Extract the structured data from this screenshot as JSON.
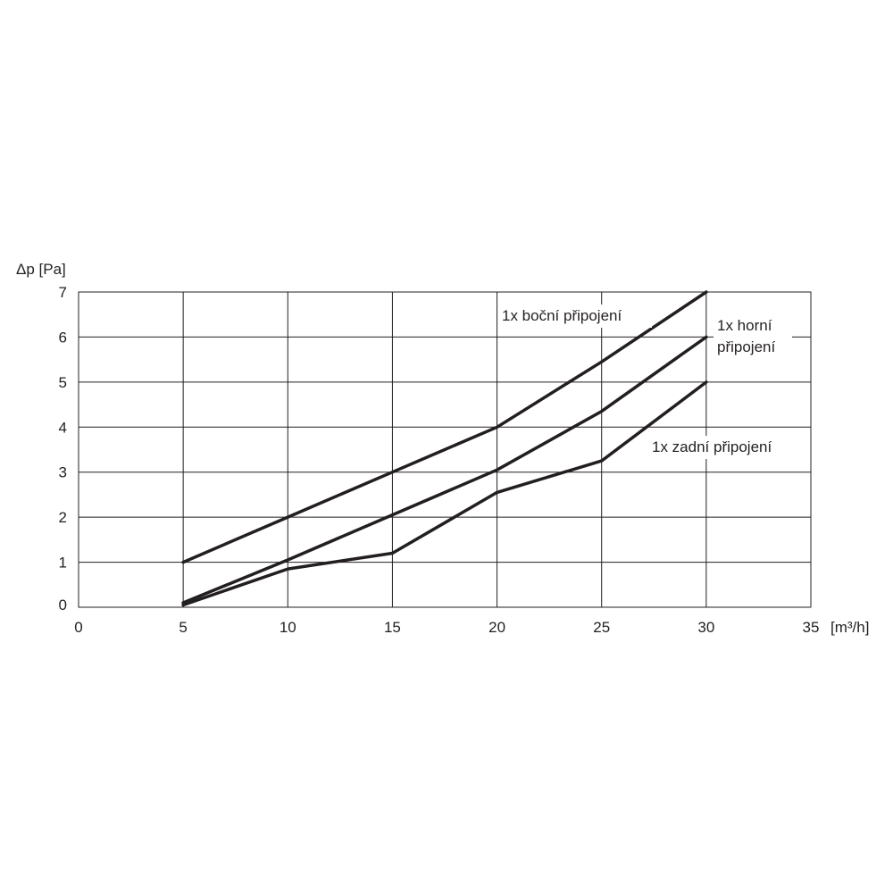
{
  "chart_data": {
    "type": "line",
    "ylabel": "Δp [Pa]",
    "xlabel": "[m³/h]",
    "xlim": [
      0,
      35
    ],
    "ylim": [
      0,
      7
    ],
    "xticks": [
      "0",
      "5",
      "10",
      "15",
      "20",
      "25",
      "30",
      "35"
    ],
    "yticks": [
      "0",
      "1",
      "2",
      "3",
      "4",
      "5",
      "6",
      "7"
    ],
    "grid": true,
    "series": [
      {
        "name": "1x boční připojení",
        "x": [
          5,
          10,
          15,
          20,
          25,
          30
        ],
        "y": [
          1.0,
          2.0,
          3.0,
          4.0,
          5.45,
          7.0
        ]
      },
      {
        "name": "1x horní připojení",
        "x": [
          5,
          10,
          15,
          20,
          25,
          30
        ],
        "y": [
          0.1,
          1.05,
          2.05,
          3.05,
          4.35,
          6.0
        ]
      },
      {
        "name": "1x zadní připojení",
        "x": [
          5,
          10,
          15,
          20,
          25,
          30
        ],
        "y": [
          0.05,
          0.85,
          1.2,
          2.55,
          3.25,
          5.0
        ]
      }
    ],
    "series_label_lines": [
      [
        "1x boční připojení"
      ],
      [
        "1x horní",
        "připojení"
      ],
      [
        "1x zadní připojení"
      ]
    ]
  }
}
